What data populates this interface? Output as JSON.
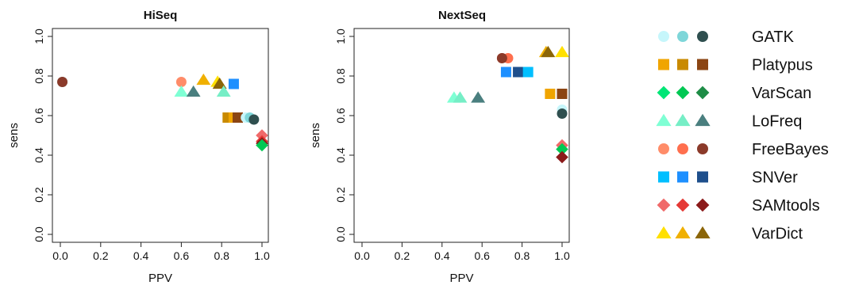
{
  "chart_data": [
    {
      "type": "scatter",
      "title": "HiSeq",
      "xlabel": "PPV",
      "ylabel": "sens",
      "xlim": [
        0,
        1
      ],
      "ylim": [
        0,
        1
      ],
      "xticks": [
        "0.0",
        "0.2",
        "0.4",
        "0.6",
        "0.8",
        "1.0"
      ],
      "yticks": [
        "0.0",
        "0.2",
        "0.4",
        "0.6",
        "0.8",
        "1.0"
      ],
      "grid": false,
      "points": [
        {
          "x": 0.01,
          "y": 0.77,
          "caller": "GATK",
          "variant": 2
        },
        {
          "x": 0.01,
          "y": 0.77,
          "caller": "FreeBayes",
          "variant": 3
        },
        {
          "x": 0.6,
          "y": 0.77,
          "caller": "FreeBayes",
          "variant": 1
        },
        {
          "x": 0.6,
          "y": 0.72,
          "caller": "LoFreq",
          "variant": 1
        },
        {
          "x": 0.66,
          "y": 0.72,
          "caller": "LoFreq",
          "variant": 3
        },
        {
          "x": 0.71,
          "y": 0.78,
          "caller": "VarDict",
          "variant": 2
        },
        {
          "x": 0.78,
          "y": 0.77,
          "caller": "VarDict",
          "variant": 1
        },
        {
          "x": 0.79,
          "y": 0.76,
          "caller": "VarDict",
          "variant": 3
        },
        {
          "x": 0.81,
          "y": 0.72,
          "caller": "LoFreq",
          "variant": 2
        },
        {
          "x": 0.86,
          "y": 0.76,
          "caller": "SNVer",
          "variant": 2
        },
        {
          "x": 0.83,
          "y": 0.59,
          "caller": "Platypus",
          "variant": 2
        },
        {
          "x": 0.86,
          "y": 0.59,
          "caller": "Platypus",
          "variant": 1
        },
        {
          "x": 0.88,
          "y": 0.59,
          "caller": "Platypus",
          "variant": 3
        },
        {
          "x": 0.92,
          "y": 0.59,
          "caller": "GATK",
          "variant": 1
        },
        {
          "x": 0.94,
          "y": 0.59,
          "caller": "GATK",
          "variant": 2
        },
        {
          "x": 0.96,
          "y": 0.58,
          "caller": "GATK",
          "variant": 3
        },
        {
          "x": 1.0,
          "y": 0.5,
          "caller": "SAMtools",
          "variant": 1
        },
        {
          "x": 1.0,
          "y": 0.47,
          "caller": "SAMtools",
          "variant": 2
        },
        {
          "x": 1.0,
          "y": 0.46,
          "caller": "SAMtools",
          "variant": 3
        },
        {
          "x": 1.0,
          "y": 0.45,
          "caller": "VarScan",
          "variant": 2
        }
      ]
    },
    {
      "type": "scatter",
      "title": "NextSeq",
      "xlabel": "PPV",
      "ylabel": "sens",
      "xlim": [
        0,
        1
      ],
      "ylim": [
        0,
        1
      ],
      "xticks": [
        "0.0",
        "0.2",
        "0.4",
        "0.6",
        "0.8",
        "1.0"
      ],
      "yticks": [
        "0.0",
        "0.2",
        "0.4",
        "0.6",
        "0.8",
        "1.0"
      ],
      "grid": false,
      "points": [
        {
          "x": 0.46,
          "y": 0.69,
          "caller": "LoFreq",
          "variant": 1
        },
        {
          "x": 0.49,
          "y": 0.69,
          "caller": "LoFreq",
          "variant": 2
        },
        {
          "x": 0.58,
          "y": 0.69,
          "caller": "LoFreq",
          "variant": 3
        },
        {
          "x": 0.7,
          "y": 0.89,
          "caller": "FreeBayes",
          "variant": 1
        },
        {
          "x": 0.73,
          "y": 0.89,
          "caller": "FreeBayes",
          "variant": 2
        },
        {
          "x": 0.7,
          "y": 0.89,
          "caller": "FreeBayes",
          "variant": 3
        },
        {
          "x": 0.72,
          "y": 0.82,
          "caller": "SNVer",
          "variant": 2
        },
        {
          "x": 0.78,
          "y": 0.82,
          "caller": "SNVer",
          "variant": 3
        },
        {
          "x": 0.83,
          "y": 0.82,
          "caller": "SNVer",
          "variant": 1
        },
        {
          "x": 0.92,
          "y": 0.92,
          "caller": "VarDict",
          "variant": 2
        },
        {
          "x": 0.93,
          "y": 0.92,
          "caller": "VarDict",
          "variant": 3
        },
        {
          "x": 1.0,
          "y": 0.92,
          "caller": "VarDict",
          "variant": 1
        },
        {
          "x": 0.94,
          "y": 0.71,
          "caller": "Platypus",
          "variant": 1
        },
        {
          "x": 1.0,
          "y": 0.71,
          "caller": "Platypus",
          "variant": 3
        },
        {
          "x": 1.0,
          "y": 0.63,
          "caller": "GATK",
          "variant": 1
        },
        {
          "x": 1.0,
          "y": 0.61,
          "caller": "GATK",
          "variant": 3
        },
        {
          "x": 1.0,
          "y": 0.45,
          "caller": "SAMtools",
          "variant": 1
        },
        {
          "x": 1.0,
          "y": 0.43,
          "caller": "VarScan",
          "variant": 2
        },
        {
          "x": 1.0,
          "y": 0.39,
          "caller": "SAMtools",
          "variant": 3
        }
      ]
    }
  ],
  "legend": {
    "placement": "right",
    "entries": [
      {
        "label": "GATK",
        "shape": "circle",
        "colors": [
          "#c6f6fb",
          "#7ed6d9",
          "#2f4f4f"
        ]
      },
      {
        "label": "Platypus",
        "shape": "square",
        "colors": [
          "#f0a500",
          "#c98a00",
          "#8b4513"
        ]
      },
      {
        "label": "VarScan",
        "shape": "diamond",
        "colors": [
          "#00e676",
          "#00c853",
          "#1e8c46"
        ]
      },
      {
        "label": "LoFreq",
        "shape": "triangle",
        "colors": [
          "#7fffd4",
          "#76eec6",
          "#4a7f7f"
        ]
      },
      {
        "label": "FreeBayes",
        "shape": "circle",
        "colors": [
          "#ff8c69",
          "#ff6f4e",
          "#8b3a2a"
        ]
      },
      {
        "label": "SNVer",
        "shape": "square",
        "colors": [
          "#00bfff",
          "#1e90ff",
          "#1e4f8c"
        ]
      },
      {
        "label": "SAMtools",
        "shape": "diamond",
        "colors": [
          "#f06a6a",
          "#e53935",
          "#8b1a1a"
        ]
      },
      {
        "label": "VarDict",
        "shape": "triangle",
        "colors": [
          "#ffe000",
          "#f0b000",
          "#8b6508"
        ]
      }
    ]
  }
}
